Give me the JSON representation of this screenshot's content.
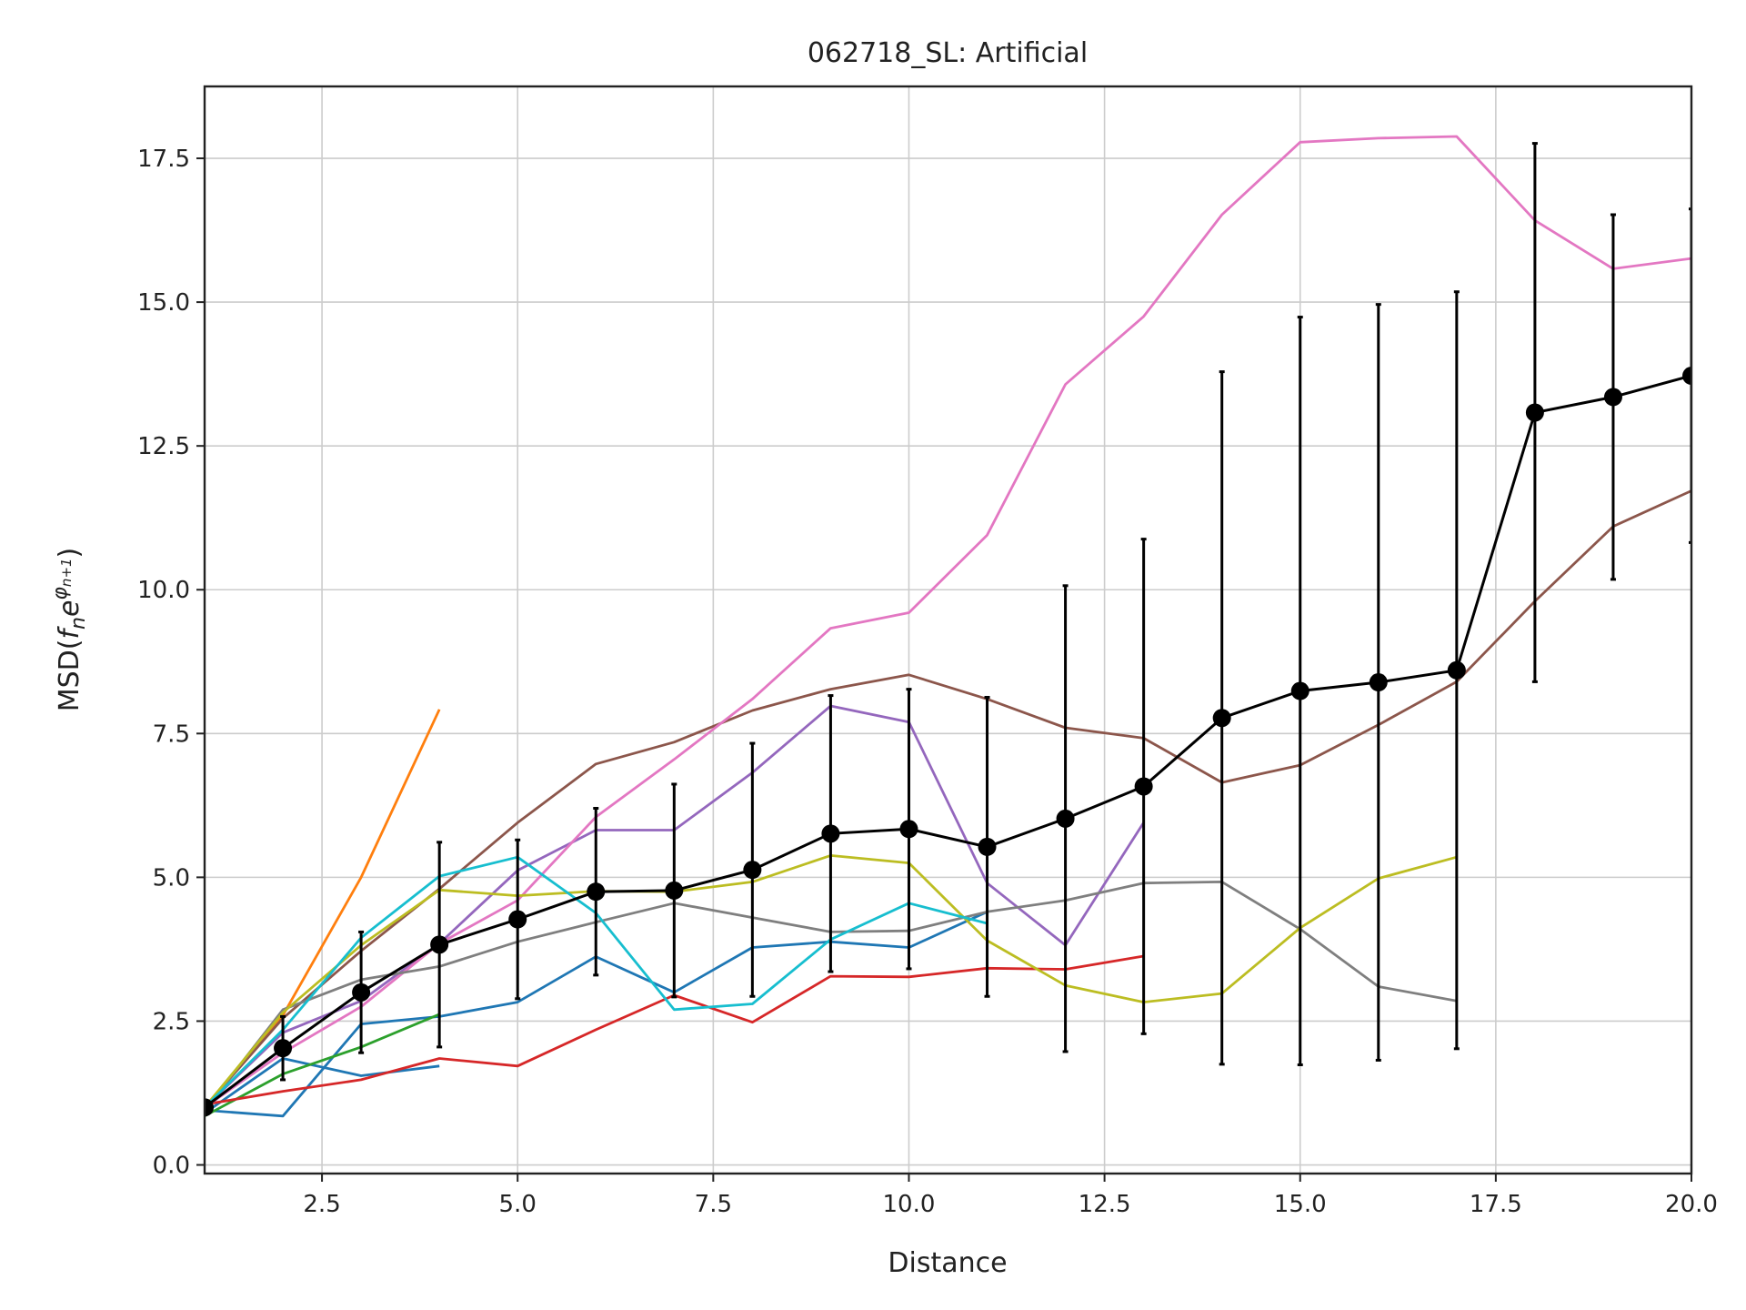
{
  "chart_data": {
    "type": "line",
    "title": "062718_SL: Artificial",
    "xlabel": "Distance",
    "ylabel_prefix": "MSD(",
    "ylabel_f": "f",
    "ylabel_fsub": "n",
    "ylabel_e": "e",
    "ylabel_phi": "φ",
    "ylabel_phisub": "n+1",
    "ylabel_suffix": ")",
    "xlim": [
      1,
      20
    ],
    "ylim": [
      -0.15,
      18.75
    ],
    "xticks": [
      2.5,
      5.0,
      7.5,
      10.0,
      12.5,
      15.0,
      17.5,
      20.0
    ],
    "xtick_labels": [
      "2.5",
      "5.0",
      "7.5",
      "10.0",
      "12.5",
      "15.0",
      "17.5",
      "20.0"
    ],
    "yticks": [
      0.0,
      2.5,
      5.0,
      7.5,
      10.0,
      12.5,
      15.0,
      17.5
    ],
    "ytick_labels": [
      "0.0",
      "2.5",
      "5.0",
      "7.5",
      "10.0",
      "12.5",
      "15.0",
      "17.5"
    ],
    "grid": true,
    "series": [
      {
        "color": "#1f77b4",
        "x": [
          1,
          2,
          3,
          4,
          5,
          6,
          7,
          8,
          9,
          10,
          11
        ],
        "y": [
          0.95,
          0.85,
          2.45,
          2.58,
          2.83,
          3.62,
          3.0,
          3.78,
          3.88,
          3.78,
          4.4
        ]
      },
      {
        "color": "#1f77b4",
        "x": [
          1,
          2,
          3,
          4
        ],
        "y": [
          0.9,
          1.85,
          1.55,
          1.72
        ]
      },
      {
        "color": "#ff7f0e",
        "x": [
          1,
          2,
          3,
          4
        ],
        "y": [
          1.0,
          2.6,
          5.0,
          7.92
        ]
      },
      {
        "color": "#2ca02c",
        "x": [
          1,
          2,
          3,
          4
        ],
        "y": [
          0.85,
          1.58,
          2.05,
          2.62
        ]
      },
      {
        "color": "#d62728",
        "x": [
          1,
          2,
          3,
          4,
          5,
          6,
          7,
          8,
          9,
          10,
          11,
          12,
          13
        ],
        "y": [
          1.05,
          1.28,
          1.48,
          1.85,
          1.72,
          2.35,
          2.95,
          2.48,
          3.28,
          3.27,
          3.42,
          3.4,
          3.63
        ]
      },
      {
        "color": "#9467bd",
        "x": [
          1,
          2,
          3,
          4,
          5,
          6,
          7,
          8,
          9,
          10,
          11,
          12,
          13
        ],
        "y": [
          1.0,
          2.3,
          2.85,
          3.85,
          5.12,
          5.82,
          5.82,
          6.82,
          7.98,
          7.7,
          4.9,
          3.82,
          5.95
        ]
      },
      {
        "color": "#8c564b",
        "x": [
          1,
          2,
          3,
          4,
          5,
          6,
          7,
          8,
          9,
          10,
          11,
          12,
          13,
          14,
          15,
          16,
          17,
          18,
          19,
          20
        ],
        "y": [
          1.0,
          2.55,
          3.72,
          4.8,
          5.95,
          6.97,
          7.35,
          7.9,
          8.27,
          8.52,
          8.1,
          7.6,
          7.42,
          6.65,
          6.95,
          7.65,
          8.4,
          9.8,
          11.1,
          11.72
        ]
      },
      {
        "color": "#e377c2",
        "x": [
          1,
          2,
          3,
          4,
          5,
          6,
          7,
          8,
          9,
          10,
          11,
          12,
          13,
          14,
          15,
          16,
          17,
          18,
          19,
          20
        ],
        "y": [
          1.0,
          1.95,
          2.75,
          3.85,
          4.6,
          6.05,
          7.05,
          8.1,
          9.33,
          9.6,
          10.95,
          13.57,
          14.75,
          16.52,
          17.78,
          17.85,
          17.88,
          16.42,
          15.58,
          15.76
        ]
      },
      {
        "color": "#7f7f7f",
        "x": [
          1,
          2,
          3,
          4,
          5,
          6,
          7,
          8,
          9,
          10,
          11,
          12,
          13,
          14,
          15,
          16,
          17
        ],
        "y": [
          0.95,
          2.7,
          3.22,
          3.45,
          3.88,
          4.22,
          4.55,
          4.3,
          4.05,
          4.07,
          4.4,
          4.6,
          4.9,
          4.92,
          4.1,
          3.1,
          2.85
        ]
      },
      {
        "color": "#bcbd22",
        "x": [
          1,
          2,
          3,
          4,
          5,
          6,
          7,
          8,
          9,
          10,
          11,
          12,
          13,
          14,
          15,
          16,
          17
        ],
        "y": [
          1.0,
          2.65,
          3.82,
          4.78,
          4.68,
          4.76,
          4.75,
          4.92,
          5.38,
          5.25,
          3.9,
          3.12,
          2.83,
          2.98,
          4.12,
          4.98,
          5.35
        ]
      },
      {
        "color": "#17becf",
        "x": [
          1,
          2,
          3,
          4,
          5,
          6,
          7,
          8,
          9,
          10,
          11
        ],
        "y": [
          1.0,
          2.35,
          3.95,
          5.02,
          5.35,
          4.38,
          2.7,
          2.8,
          3.92,
          4.55,
          4.2
        ]
      }
    ],
    "mean": {
      "color": "#000000",
      "x": [
        1,
        2,
        3,
        4,
        5,
        6,
        7,
        8,
        9,
        10,
        11,
        12,
        13,
        14,
        15,
        16,
        17,
        18,
        19,
        20
      ],
      "y": [
        1.0,
        2.03,
        3.0,
        3.83,
        4.27,
        4.75,
        4.77,
        5.13,
        5.76,
        5.84,
        5.53,
        6.02,
        6.58,
        7.77,
        8.24,
        8.39,
        8.6,
        13.08,
        13.35,
        13.72
      ],
      "err": [
        0.0,
        0.55,
        1.05,
        1.78,
        1.38,
        1.45,
        1.85,
        2.2,
        2.4,
        2.43,
        2.6,
        4.05,
        4.3,
        6.02,
        6.5,
        6.57,
        6.58,
        4.68,
        3.17,
        2.9
      ]
    }
  }
}
